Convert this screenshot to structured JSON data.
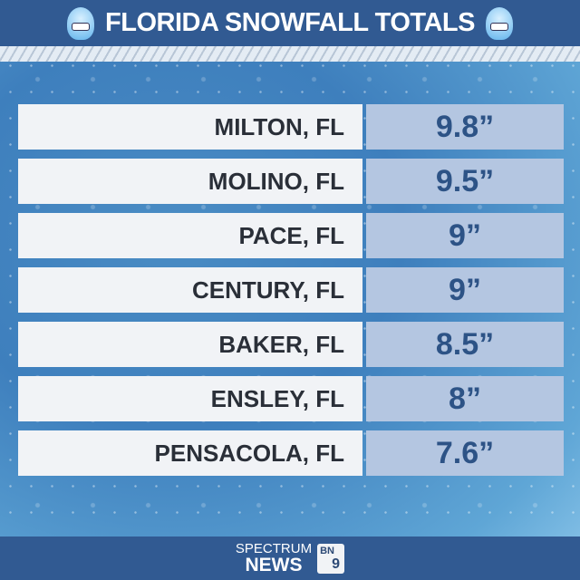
{
  "header": {
    "title": "FLORIDA SNOWFALL TOTALS",
    "icon": "cold-face-emoji"
  },
  "chart_data": {
    "type": "table",
    "title": "FLORIDA SNOWFALL TOTALS",
    "rows": [
      {
        "location": "MILTON, FL",
        "total": "9.8”",
        "value": 9.8
      },
      {
        "location": "MOLINO, FL",
        "total": "9.5”",
        "value": 9.5
      },
      {
        "location": "PACE, FL",
        "total": "9”",
        "value": 9
      },
      {
        "location": "CENTURY, FL",
        "total": "9”",
        "value": 9
      },
      {
        "location": "BAKER, FL",
        "total": "8.5”",
        "value": 8.5
      },
      {
        "location": "ENSLEY, FL",
        "total": "8”",
        "value": 8
      },
      {
        "location": "PENSACOLA, FL",
        "total": "7.6”",
        "value": 7.6
      }
    ]
  },
  "footer": {
    "brand_top": "SPECTRUM",
    "brand_bottom": "NEWS",
    "badge_top": "BN",
    "badge_bottom": "9"
  }
}
